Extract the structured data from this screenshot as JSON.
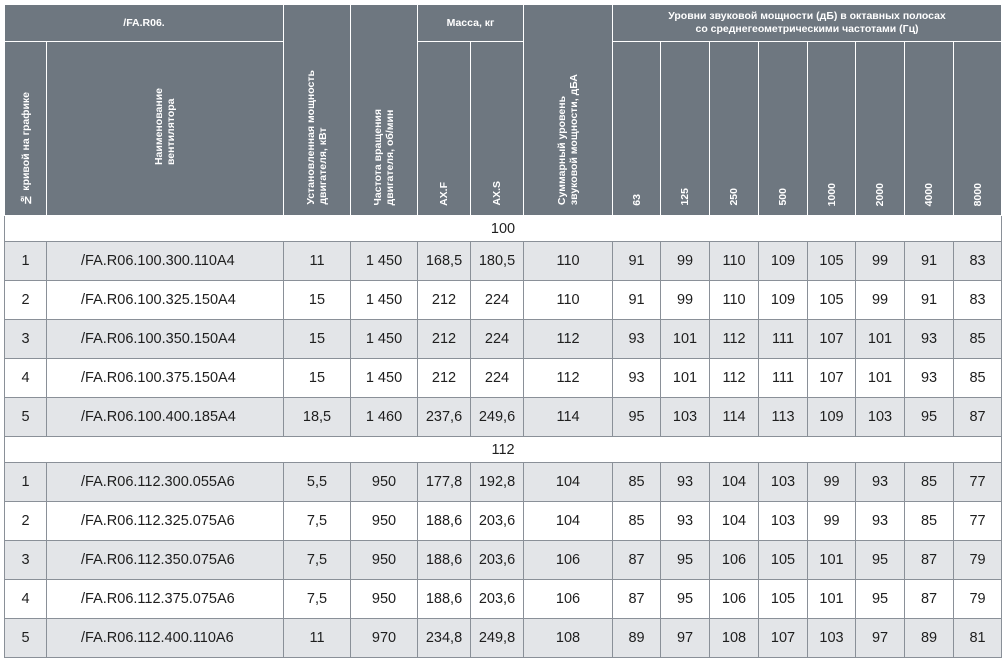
{
  "header": {
    "series": "/FA.R06.",
    "curve_no": "№ кривой на графике",
    "fan_name": "Наименование\nвентилятора",
    "motor_power": "Установленная мощность\nдвигателя, кВт",
    "speed": "Частота вращения\nдвигателя, об/мин",
    "mass": "Масса, кг",
    "mass_f": "AX.F",
    "mass_s": "AX.S",
    "total_sound": "Суммарный уровень\nзвуковой мощности, дБА",
    "octave_title_1": "Уровни звуковой мощности (дБ) в октавных полосах",
    "octave_title_2": "со среднегеометрическими частотами (Гц)",
    "freqs": [
      "63",
      "125",
      "250",
      "500",
      "1000",
      "2000",
      "4000",
      "8000"
    ]
  },
  "groups": [
    {
      "label": "100",
      "rows": [
        {
          "n": "1",
          "name": "/FA.R06.100.300.110A4",
          "kw": "11",
          "rpm": "1 450",
          "mf": "168,5",
          "ms": "180,5",
          "total": "110",
          "bands": [
            "91",
            "99",
            "110",
            "109",
            "105",
            "99",
            "91",
            "83"
          ]
        },
        {
          "n": "2",
          "name": "/FA.R06.100.325.150A4",
          "kw": "15",
          "rpm": "1 450",
          "mf": "212",
          "ms": "224",
          "total": "110",
          "bands": [
            "91",
            "99",
            "110",
            "109",
            "105",
            "99",
            "91",
            "83"
          ]
        },
        {
          "n": "3",
          "name": "/FA.R06.100.350.150A4",
          "kw": "15",
          "rpm": "1 450",
          "mf": "212",
          "ms": "224",
          "total": "112",
          "bands": [
            "93",
            "101",
            "112",
            "111",
            "107",
            "101",
            "93",
            "85"
          ]
        },
        {
          "n": "4",
          "name": "/FA.R06.100.375.150A4",
          "kw": "15",
          "rpm": "1 450",
          "mf": "212",
          "ms": "224",
          "total": "112",
          "bands": [
            "93",
            "101",
            "112",
            "111",
            "107",
            "101",
            "93",
            "85"
          ]
        },
        {
          "n": "5",
          "name": "/FA.R06.100.400.185A4",
          "kw": "18,5",
          "rpm": "1 460",
          "mf": "237,6",
          "ms": "249,6",
          "total": "114",
          "bands": [
            "95",
            "103",
            "114",
            "113",
            "109",
            "103",
            "95",
            "87"
          ]
        }
      ]
    },
    {
      "label": "112",
      "rows": [
        {
          "n": "1",
          "name": "/FA.R06.112.300.055A6",
          "kw": "5,5",
          "rpm": "950",
          "mf": "177,8",
          "ms": "192,8",
          "total": "104",
          "bands": [
            "85",
            "93",
            "104",
            "103",
            "99",
            "93",
            "85",
            "77"
          ]
        },
        {
          "n": "2",
          "name": "/FA.R06.112.325.075A6",
          "kw": "7,5",
          "rpm": "950",
          "mf": "188,6",
          "ms": "203,6",
          "total": "104",
          "bands": [
            "85",
            "93",
            "104",
            "103",
            "99",
            "93",
            "85",
            "77"
          ]
        },
        {
          "n": "3",
          "name": "/FA.R06.112.350.075A6",
          "kw": "7,5",
          "rpm": "950",
          "mf": "188,6",
          "ms": "203,6",
          "total": "106",
          "bands": [
            "87",
            "95",
            "106",
            "105",
            "101",
            "95",
            "87",
            "79"
          ]
        },
        {
          "n": "4",
          "name": "/FA.R06.112.375.075A6",
          "kw": "7,5",
          "rpm": "950",
          "mf": "188,6",
          "ms": "203,6",
          "total": "106",
          "bands": [
            "87",
            "95",
            "106",
            "105",
            "101",
            "95",
            "87",
            "79"
          ]
        },
        {
          "n": "5",
          "name": "/FA.R06.112.400.110A6",
          "kw": "11",
          "rpm": "970",
          "mf": "234,8",
          "ms": "249,8",
          "total": "108",
          "bands": [
            "89",
            "97",
            "108",
            "107",
            "103",
            "97",
            "89",
            "81"
          ]
        }
      ]
    }
  ]
}
